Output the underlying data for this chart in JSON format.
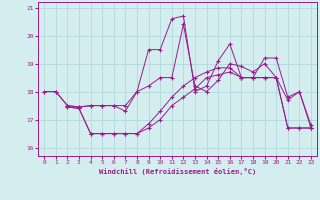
{
  "xlabel": "Windchill (Refroidissement éolien,°C)",
  "background_color": "#d4eef0",
  "grid_color": "#b0d8dc",
  "line_color": "#9b1a8a",
  "xlim": [
    -0.5,
    23.5
  ],
  "ylim": [
    15.7,
    21.2
  ],
  "yticks": [
    16,
    17,
    18,
    19,
    20,
    21
  ],
  "xticks": [
    0,
    1,
    2,
    3,
    4,
    5,
    6,
    7,
    8,
    9,
    10,
    11,
    12,
    13,
    14,
    15,
    16,
    17,
    18,
    19,
    20,
    21,
    22,
    23
  ],
  "line1_x": [
    0,
    1,
    2,
    3,
    4,
    5,
    6,
    7,
    8,
    9,
    10,
    11,
    12,
    13,
    14,
    15,
    16,
    17,
    18,
    19,
    20,
    21,
    22,
    23
  ],
  "line1_y": [
    18.0,
    18.0,
    17.5,
    17.45,
    17.5,
    17.5,
    17.5,
    17.3,
    18.0,
    19.5,
    19.5,
    20.6,
    20.7,
    18.0,
    18.2,
    19.1,
    19.7,
    18.5,
    18.5,
    19.2,
    19.2,
    17.8,
    18.0,
    16.8
  ],
  "line2_x": [
    0,
    1,
    2,
    3,
    4,
    5,
    6,
    7,
    8,
    9,
    10,
    11,
    12,
    13,
    14,
    15,
    16,
    17,
    18,
    19,
    20,
    21,
    22,
    23
  ],
  "line2_y": [
    18.0,
    18.0,
    17.5,
    17.45,
    17.5,
    17.5,
    17.5,
    17.5,
    18.0,
    18.2,
    18.5,
    18.5,
    20.4,
    18.2,
    18.0,
    18.4,
    19.0,
    18.9,
    18.7,
    19.0,
    18.5,
    17.7,
    18.0,
    16.7
  ],
  "line3_x": [
    2,
    3,
    4,
    5,
    6,
    7,
    8,
    9,
    10,
    11,
    12,
    13,
    14,
    15,
    16,
    17,
    18,
    19,
    20,
    21,
    22,
    23
  ],
  "line3_y": [
    17.45,
    17.4,
    16.5,
    16.5,
    16.5,
    16.5,
    16.5,
    16.85,
    17.3,
    17.8,
    18.2,
    18.5,
    18.7,
    18.85,
    18.85,
    18.5,
    18.5,
    18.5,
    18.5,
    16.7,
    16.7,
    16.7
  ],
  "line4_x": [
    2,
    3,
    4,
    5,
    6,
    7,
    8,
    9,
    10,
    11,
    12,
    13,
    14,
    15,
    16,
    17,
    18,
    19,
    20,
    21,
    22,
    23
  ],
  "line4_y": [
    17.45,
    17.4,
    16.5,
    16.5,
    16.5,
    16.5,
    16.5,
    16.7,
    17.0,
    17.5,
    17.8,
    18.1,
    18.5,
    18.6,
    18.7,
    18.5,
    18.5,
    18.5,
    18.5,
    16.7,
    16.7,
    16.7
  ]
}
